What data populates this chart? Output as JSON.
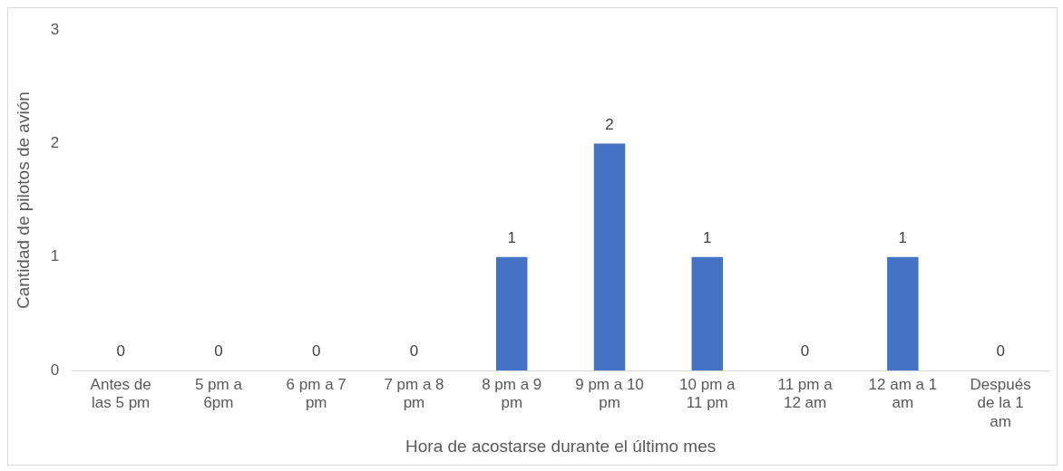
{
  "chart_data": {
    "type": "bar",
    "xlabel": "Hora de acostarse durante el último mes",
    "ylabel": "Cantidad de pilotos de avión",
    "categories": [
      "Antes de las 5 pm",
      "5 pm a 6pm",
      "6 pm a 7 pm",
      "7 pm a 8 pm",
      "8 pm a 9 pm",
      "9 pm a 10 pm",
      "10 pm a 11 pm",
      "11 pm a 12 am",
      "12 am a 1 am",
      "Después de la 1 am"
    ],
    "values": [
      0,
      0,
      0,
      0,
      1,
      2,
      1,
      0,
      1,
      0
    ],
    "color": "#4472c4",
    "ylim": [
      0,
      3
    ],
    "yticks": [
      0,
      1,
      2,
      3
    ],
    "grid": false,
    "legend": false,
    "data_labels": true
  }
}
